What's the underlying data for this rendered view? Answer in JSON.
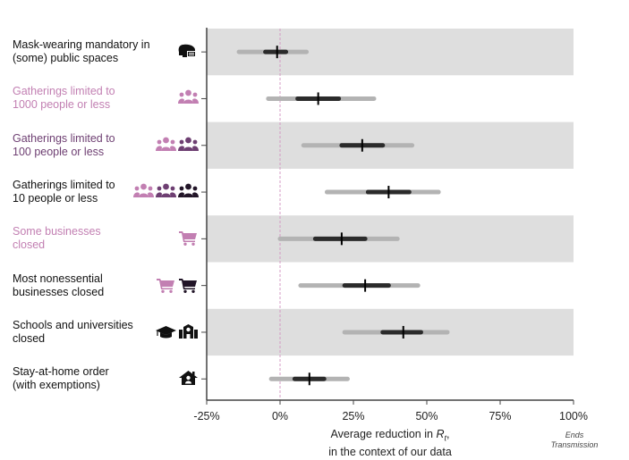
{
  "colors": {
    "black": "#111111",
    "pink": "#c27fb2",
    "purple": "#6e3f72",
    "dark": "#221528",
    "band": "#dedede",
    "ci_outer": "#b3b3b3",
    "ci_inner": "#2b2b2b",
    "zero_line": "#d49bc4"
  },
  "chart_data": {
    "type": "forest",
    "title": "",
    "xlabel": "Average reduction in R_t, in the context of our data",
    "xlabel_line1": "Average reduction in ",
    "xlabel_symbol": "R",
    "xlabel_subscript": "t",
    "xlabel_suffix": ",",
    "xlabel_line2": "in the context of our data",
    "xlim": [
      -25,
      100
    ],
    "xticks": [
      -25,
      0,
      25,
      50,
      75,
      100
    ],
    "xtick_labels": [
      "-25%",
      "0%",
      "25%",
      "50%",
      "75%",
      "100%"
    ],
    "x_annotation": "Ends Transmission",
    "x_annotation_line1": "Ends",
    "x_annotation_line2": "Transmission",
    "reference_line": 0,
    "alternating_bands": true,
    "rows": [
      {
        "label_line1": "Mask-wearing mandatory in",
        "label_line2": "(some) public spaces",
        "label_color": "black",
        "icons": [
          {
            "name": "mask-icon",
            "color": "black"
          }
        ],
        "median": -1,
        "ci50": [
          -5,
          2
        ],
        "ci95": [
          -14,
          9
        ]
      },
      {
        "label_line1": "Gatherings limited to",
        "label_line2": "1000 people or less",
        "label_color": "pink",
        "icons": [
          {
            "name": "group-icon",
            "color": "pink"
          }
        ],
        "median": 13,
        "ci50": [
          6,
          20
        ],
        "ci95": [
          -4,
          32
        ]
      },
      {
        "label_line1": "Gatherings limited to",
        "label_line2": "100 people or less",
        "label_color": "purple",
        "icons": [
          {
            "name": "group-icon",
            "color": "pink"
          },
          {
            "name": "group-icon",
            "color": "purple"
          }
        ],
        "median": 28,
        "ci50": [
          21,
          35
        ],
        "ci95": [
          8,
          45
        ]
      },
      {
        "label_line1": "Gatherings limited to",
        "label_line2": "10 people or less",
        "label_color": "black",
        "icons": [
          {
            "name": "group-icon",
            "color": "pink"
          },
          {
            "name": "group-icon",
            "color": "purple"
          },
          {
            "name": "group-icon",
            "color": "dark"
          }
        ],
        "median": 37,
        "ci50": [
          30,
          44
        ],
        "ci95": [
          16,
          54
        ]
      },
      {
        "label_line1": "Some businesses",
        "label_line2": "closed",
        "label_color": "pink",
        "icons": [
          {
            "name": "cart-icon",
            "color": "pink"
          }
        ],
        "median": 21,
        "ci50": [
          12,
          29
        ],
        "ci95": [
          0,
          40
        ]
      },
      {
        "label_line1": "Most nonessential",
        "label_line2": "businesses closed",
        "label_color": "black",
        "icons": [
          {
            "name": "cart-icon",
            "color": "pink"
          },
          {
            "name": "cart-icon",
            "color": "dark"
          }
        ],
        "median": 29,
        "ci50": [
          22,
          37
        ],
        "ci95": [
          7,
          47
        ]
      },
      {
        "label_line1": "Schools and universities",
        "label_line2": "closed",
        "label_color": "black",
        "icons": [
          {
            "name": "graduation-cap-icon",
            "color": "black"
          },
          {
            "name": "school-icon",
            "color": "black"
          }
        ],
        "median": 42,
        "ci50": [
          35,
          48
        ],
        "ci95": [
          22,
          57
        ]
      },
      {
        "label_line1": "Stay-at-home order",
        "label_line2": "(with exemptions)",
        "label_color": "black",
        "icons": [
          {
            "name": "home-icon",
            "color": "black"
          }
        ],
        "median": 10,
        "ci50": [
          5,
          15
        ],
        "ci95": [
          -3,
          23
        ]
      }
    ]
  }
}
